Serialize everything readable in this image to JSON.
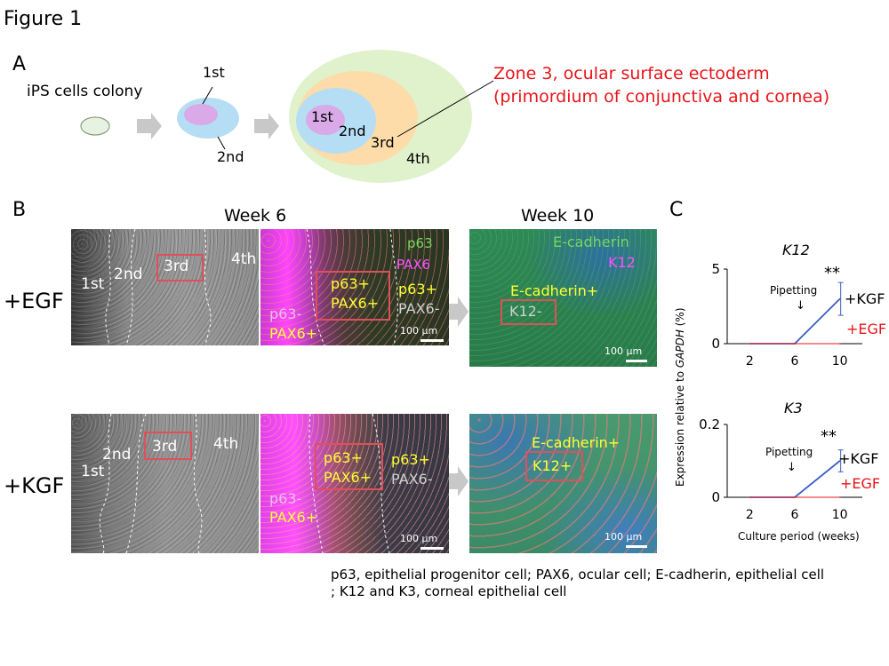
{
  "figure_title": "Figure 1",
  "panel_a": {
    "label": "A",
    "ips_label": "iPS cells colony",
    "small_zones": {
      "first": "1st",
      "second": "2nd"
    },
    "large_zones": {
      "first": "1st",
      "second": "2nd",
      "third": "3rd",
      "fourth": "4th"
    },
    "annotation_line1": "Zone 3, ocular surface ectoderm",
    "annotation_line2": "(primordium of conjunctiva and cornea)",
    "colors": {
      "colony": "#e8f2e2",
      "zone1": "#d9a9e8",
      "zone2": "#b5def4",
      "zone3": "#fddcaa",
      "zone4": "#dff2cc",
      "annotation": "#e8141a"
    }
  },
  "panel_b": {
    "label": "B",
    "week6": "Week 6",
    "week10": "Week 10",
    "row_egf": "+EGF",
    "row_kgf": "+KGF",
    "row_egf_color": "#e07830",
    "row_kgf_color": "#4a6fc6",
    "egf": {
      "bright_zones": {
        "first": "1st",
        "second": "2nd",
        "third": "3rd",
        "fourth": "4th"
      },
      "fluo_w6": {
        "legend_p63": "p63",
        "legend_pax6": "PAX6",
        "box_line1": "p63+",
        "box_line2": "PAX6+",
        "right_line1": "p63+",
        "right_line2": "PAX6-",
        "left_line1": "p63-",
        "left_line2": "PAX6+",
        "scale": "100 μm"
      },
      "fluo_w10": {
        "legend_ecad": "E-cadherin",
        "legend_k12": "K12",
        "above_box": "E-cadherin+",
        "box": "K12-",
        "scale": "100 μm"
      }
    },
    "kgf": {
      "bright_zones": {
        "first": "1st",
        "second": "2nd",
        "third": "3rd",
        "fourth": "4th"
      },
      "fluo_w6": {
        "box_line1": "p63+",
        "box_line2": "PAX6+",
        "right_line1": "p63+",
        "right_line2": "PAX6-",
        "left_line1": "p63-",
        "left_line2": "PAX6+",
        "scale": "100 μm"
      },
      "fluo_w10": {
        "above_box": "E-cadherin+",
        "box": "K12+",
        "scale": "100 μm"
      }
    }
  },
  "panel_c": {
    "label": "C",
    "ylabel_prefix": "Expression relative to ",
    "ylabel_italic": "GAPDH",
    "ylabel_suffix": " (%)",
    "xlabel": "Culture period (weeks)",
    "pipetting": "Pipetting",
    "pipetting_arrow": "↓",
    "sig": "**"
  },
  "chart_data": [
    {
      "type": "line",
      "title": "K12",
      "x": [
        2,
        6,
        10
      ],
      "ylim": [
        0,
        5
      ],
      "yticks": [
        "0",
        "5"
      ],
      "xticks": [
        "2",
        "6",
        "10"
      ],
      "series": [
        {
          "name": "+KGF",
          "color": "#3a5fc0",
          "values": [
            0,
            0,
            3.0
          ],
          "error": [
            0,
            0,
            1.1
          ]
        },
        {
          "name": "+EGF",
          "color": "#e8141a",
          "values": [
            0,
            0,
            0
          ]
        }
      ]
    },
    {
      "type": "line",
      "title": "K3",
      "x": [
        2,
        6,
        10
      ],
      "ylim": [
        0,
        0.2
      ],
      "yticks": [
        "0",
        "0.2"
      ],
      "xticks": [
        "2",
        "6",
        "10"
      ],
      "series": [
        {
          "name": "+KGF",
          "color": "#3a5fc0",
          "values": [
            0,
            0,
            0.1
          ],
          "error": [
            0,
            0,
            0.03
          ]
        },
        {
          "name": "+EGF",
          "color": "#e8141a",
          "values": [
            0,
            0,
            0
          ]
        }
      ]
    }
  ],
  "caption_line1": "p63, epithelial progenitor cell; PAX6, ocular cell; E-cadherin, epithelial cell",
  "caption_line2": "; K12 and K3, corneal epithelial cell"
}
